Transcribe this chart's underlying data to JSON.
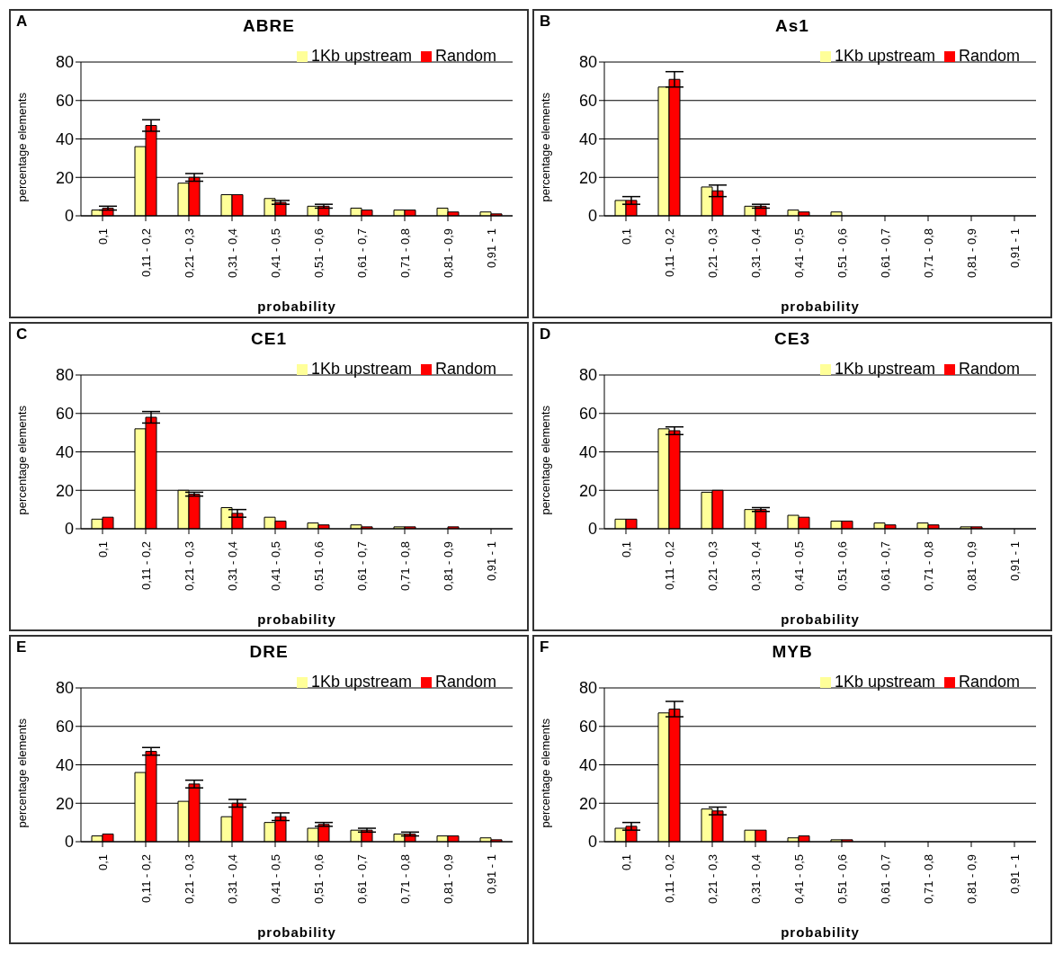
{
  "chart_data": [
    {
      "type": "bar",
      "title": "ABRE",
      "annotations": [
        "A"
      ],
      "xlabel": "probability",
      "ylabel": "percentage elements",
      "categories": [
        "0,1",
        "0,11 - 0,2",
        "0,21 - 0,3",
        "0,31 - 0,4",
        "0,41 - 0,5",
        "0,51 - 0,6",
        "0,61 - 0,7",
        "0,71 - 0,8",
        "0,81 - 0,9",
        "0,91 - 1"
      ],
      "ylim": [
        0,
        80
      ],
      "yticks": [
        0,
        20,
        40,
        60,
        80
      ],
      "grid": "y",
      "legend": "top right",
      "series": [
        {
          "name": "1Kb upstream",
          "color": "#ffff99",
          "values": [
            3,
            36,
            17,
            11,
            9,
            5,
            4,
            3,
            4,
            2
          ]
        },
        {
          "name": "Random",
          "color": "#ff0000",
          "values": [
            4,
            47,
            20,
            11,
            7,
            5,
            3,
            3,
            2,
            1
          ],
          "errors": [
            1,
            3,
            2,
            null,
            1,
            1,
            null,
            null,
            null,
            null
          ]
        }
      ]
    },
    {
      "type": "bar",
      "title": "As1",
      "annotations": [
        "B"
      ],
      "xlabel": "probability",
      "ylabel": "percentage elements",
      "categories": [
        "0,1",
        "0,11 - 0,2",
        "0,21 - 0,3",
        "0,31 - 0,4",
        "0,41 - 0,5",
        "0,51 - 0,6",
        "0,61 - 0,7",
        "0,71 - 0,8",
        "0,81 - 0,9",
        "0,91 - 1"
      ],
      "ylim": [
        0,
        80
      ],
      "yticks": [
        0,
        20,
        40,
        60,
        80
      ],
      "grid": "y",
      "legend": "top right",
      "series": [
        {
          "name": "1Kb upstream",
          "color": "#ffff99",
          "values": [
            8,
            67,
            15,
            5,
            3,
            2,
            0,
            0,
            0,
            0
          ]
        },
        {
          "name": "Random",
          "color": "#ff0000",
          "values": [
            8,
            71,
            13,
            5,
            2,
            0,
            0,
            0,
            0,
            0
          ],
          "errors": [
            2,
            4,
            3,
            1,
            null,
            null,
            null,
            null,
            null,
            null
          ]
        }
      ]
    },
    {
      "type": "bar",
      "title": "CE1",
      "annotations": [
        "C"
      ],
      "xlabel": "probability",
      "ylabel": "percentage elements",
      "categories": [
        "0,1",
        "0,11 - 0,2",
        "0,21 - 0,3",
        "0,31 - 0,4",
        "0,41 - 0,5",
        "0,51 - 0,6",
        "0,61 - 0,7",
        "0,71 - 0,8",
        "0,81 - 0,9",
        "0,91 - 1"
      ],
      "ylim": [
        0,
        80
      ],
      "yticks": [
        0,
        20,
        40,
        60,
        80
      ],
      "grid": "y",
      "legend": "top right",
      "series": [
        {
          "name": "1Kb upstream",
          "color": "#ffff99",
          "values": [
            5,
            52,
            20,
            11,
            6,
            3,
            2,
            1,
            0,
            0
          ]
        },
        {
          "name": "Random",
          "color": "#ff0000",
          "values": [
            6,
            58,
            18,
            8,
            4,
            2,
            1,
            1,
            1,
            0
          ],
          "errors": [
            null,
            3,
            1,
            2,
            null,
            null,
            null,
            null,
            null,
            null
          ]
        }
      ]
    },
    {
      "type": "bar",
      "title": "CE3",
      "annotations": [
        "D"
      ],
      "xlabel": "probability",
      "ylabel": "percentage elements",
      "categories": [
        "0,1",
        "0,11 - 0,2",
        "0,21 - 0,3",
        "0,31 - 0,4",
        "0,41 - 0,5",
        "0,51 - 0,6",
        "0,61 - 0,7",
        "0,71 - 0,8",
        "0,81 - 0,9",
        "0,91 - 1"
      ],
      "ylim": [
        0,
        80
      ],
      "yticks": [
        0,
        20,
        40,
        60,
        80
      ],
      "grid": "y",
      "legend": "top right",
      "series": [
        {
          "name": "1Kb upstream",
          "color": "#ffff99",
          "values": [
            5,
            52,
            19,
            10,
            7,
            4,
            3,
            3,
            1,
            0
          ]
        },
        {
          "name": "Random",
          "color": "#ff0000",
          "values": [
            5,
            51,
            20,
            10,
            6,
            4,
            2,
            2,
            1,
            0
          ],
          "errors": [
            null,
            2,
            null,
            1,
            null,
            null,
            null,
            null,
            null,
            null
          ]
        }
      ]
    },
    {
      "type": "bar",
      "title": "DRE",
      "annotations": [
        "E"
      ],
      "xlabel": "probability",
      "ylabel": "percentage elements",
      "categories": [
        "0,1",
        "0,11 - 0,2",
        "0,21 - 0,3",
        "0,31 - 0,4",
        "0,41 - 0,5",
        "0,51 - 0,6",
        "0,61 - 0,7",
        "0,71 - 0,8",
        "0,81 - 0,9",
        "0,91 - 1"
      ],
      "ylim": [
        0,
        80
      ],
      "yticks": [
        0,
        20,
        40,
        60,
        80
      ],
      "grid": "y",
      "legend": "top right",
      "series": [
        {
          "name": "1Kb upstream",
          "color": "#ffff99",
          "values": [
            3,
            36,
            21,
            13,
            10,
            7,
            6,
            4,
            3,
            2
          ]
        },
        {
          "name": "Random",
          "color": "#ff0000",
          "values": [
            4,
            47,
            30,
            20,
            13,
            9,
            6,
            4,
            3,
            1
          ],
          "errors": [
            null,
            2,
            2,
            2,
            2,
            1,
            1,
            1,
            null,
            null
          ]
        }
      ]
    },
    {
      "type": "bar",
      "title": "MYB",
      "annotations": [
        "F"
      ],
      "xlabel": "probability",
      "ylabel": "percentage elements",
      "categories": [
        "0,1",
        "0,11 - 0,2",
        "0,21 - 0,3",
        "0,31 - 0,4",
        "0,41 - 0,5",
        "0,51 - 0,6",
        "0,61 - 0,7",
        "0,71 - 0,8",
        "0,81 - 0,9",
        "0,91 - 1"
      ],
      "ylim": [
        0,
        80
      ],
      "yticks": [
        0,
        20,
        40,
        60,
        80
      ],
      "grid": "y",
      "legend": "top right",
      "series": [
        {
          "name": "1Kb upstream",
          "color": "#ffff99",
          "values": [
            7,
            67,
            17,
            6,
            2,
            1,
            0,
            0,
            0,
            0
          ]
        },
        {
          "name": "Random",
          "color": "#ff0000",
          "values": [
            8,
            69,
            16,
            6,
            3,
            1,
            0,
            0,
            0,
            0
          ],
          "errors": [
            2,
            4,
            2,
            null,
            null,
            null,
            null,
            null,
            null,
            null
          ]
        }
      ]
    }
  ]
}
